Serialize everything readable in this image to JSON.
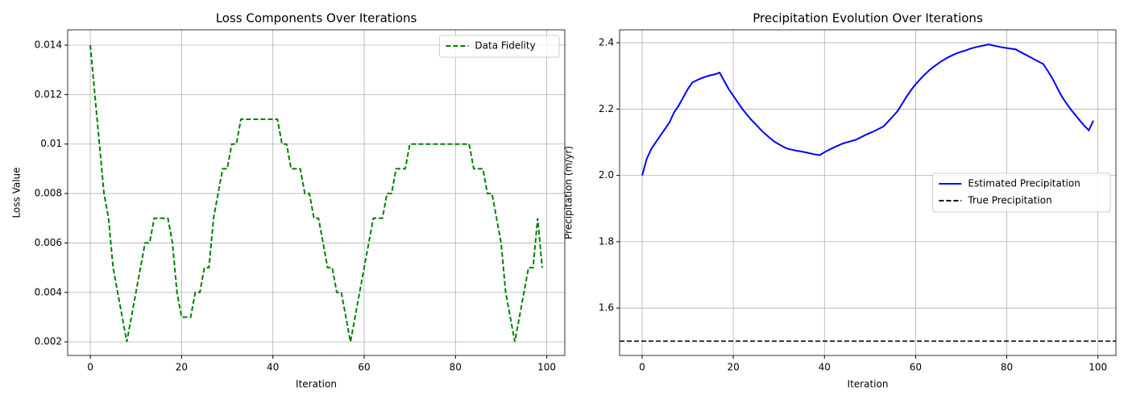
{
  "chart_data": [
    {
      "type": "line",
      "title": "Loss Components Over Iterations",
      "xlabel": "Iteration",
      "ylabel": "Loss Value",
      "x": [
        0,
        1,
        2,
        3,
        4,
        5,
        6,
        7,
        8,
        9,
        10,
        11,
        12,
        13,
        14,
        15,
        16,
        17,
        18,
        19,
        20,
        21,
        22,
        23,
        24,
        25,
        26,
        27,
        28,
        29,
        30,
        31,
        32,
        33,
        34,
        35,
        36,
        37,
        38,
        39,
        40,
        41,
        42,
        43,
        44,
        45,
        46,
        47,
        48,
        49,
        50,
        51,
        52,
        53,
        54,
        55,
        56,
        57,
        58,
        59,
        60,
        61,
        62,
        63,
        64,
        65,
        66,
        67,
        68,
        69,
        70,
        71,
        72,
        73,
        74,
        75,
        76,
        77,
        78,
        79,
        80,
        81,
        82,
        83,
        84,
        85,
        86,
        87,
        88,
        89,
        90,
        91,
        92,
        93,
        94,
        95,
        96,
        97,
        98,
        99
      ],
      "series": [
        {
          "name": "Data Fidelity",
          "color": "#008000",
          "style": "dashed",
          "values": [
            0.014,
            0.012,
            0.01,
            0.008,
            0.007,
            0.005,
            0.004,
            0.003,
            0.002,
            0.003,
            0.004,
            0.005,
            0.006,
            0.006,
            0.007,
            0.007,
            0.007,
            0.007,
            0.006,
            0.004,
            0.003,
            0.003,
            0.003,
            0.004,
            0.004,
            0.005,
            0.005,
            0.007,
            0.008,
            0.009,
            0.009,
            0.01,
            0.01,
            0.011,
            0.011,
            0.011,
            0.011,
            0.011,
            0.011,
            0.011,
            0.011,
            0.011,
            0.01,
            0.01,
            0.009,
            0.009,
            0.009,
            0.008,
            0.008,
            0.007,
            0.007,
            0.006,
            0.005,
            0.005,
            0.004,
            0.004,
            0.003,
            0.002,
            0.003,
            0.004,
            0.005,
            0.006,
            0.007,
            0.007,
            0.007,
            0.008,
            0.008,
            0.009,
            0.009,
            0.009,
            0.01,
            0.01,
            0.01,
            0.01,
            0.01,
            0.01,
            0.01,
            0.01,
            0.01,
            0.01,
            0.01,
            0.01,
            0.01,
            0.01,
            0.009,
            0.009,
            0.009,
            0.008,
            0.008,
            0.007,
            0.006,
            0.004,
            0.003,
            0.002,
            0.003,
            0.004,
            0.005,
            0.005,
            0.007,
            0.005
          ]
        }
      ],
      "xlim": [
        -4.95,
        103.95
      ],
      "xticks": [
        0,
        20,
        40,
        60,
        80,
        100
      ],
      "ylim": [
        0.00145,
        0.01462
      ],
      "yticks": [
        0.002,
        0.004,
        0.006,
        0.008,
        0.01,
        0.012,
        0.014
      ],
      "grid": true,
      "legend": "upper right"
    },
    {
      "type": "line",
      "title": "Precipitation Evolution Over Iterations",
      "xlabel": "Iteration",
      "ylabel": "Precipitation (m/yr)",
      "x": [
        0,
        1,
        2,
        3,
        4,
        5,
        6,
        7,
        8,
        9,
        10,
        11,
        12,
        13,
        14,
        15,
        16,
        17,
        18,
        19,
        20,
        21,
        22,
        23,
        24,
        25,
        26,
        27,
        28,
        29,
        30,
        31,
        32,
        33,
        34,
        35,
        36,
        37,
        38,
        39,
        40,
        41,
        42,
        43,
        44,
        45,
        46,
        47,
        48,
        49,
        50,
        51,
        52,
        53,
        54,
        55,
        56,
        57,
        58,
        59,
        60,
        61,
        62,
        63,
        64,
        65,
        66,
        67,
        68,
        69,
        70,
        71,
        72,
        73,
        74,
        75,
        76,
        77,
        78,
        79,
        80,
        81,
        82,
        83,
        84,
        85,
        86,
        87,
        88,
        89,
        90,
        91,
        92,
        93,
        94,
        95,
        96,
        97,
        98,
        99
      ],
      "series": [
        {
          "name": "Estimated Precipitation",
          "color": "#0000ff",
          "style": "solid",
          "values": [
            2.0,
            2.05,
            2.08,
            2.1,
            2.12,
            2.14,
            2.16,
            2.19,
            2.21,
            2.235,
            2.26,
            2.28,
            2.287,
            2.293,
            2.298,
            2.302,
            2.305,
            2.31,
            2.285,
            2.26,
            2.24,
            2.22,
            2.2,
            2.183,
            2.167,
            2.153,
            2.138,
            2.125,
            2.113,
            2.102,
            2.094,
            2.086,
            2.08,
            2.077,
            2.074,
            2.072,
            2.069,
            2.066,
            2.063,
            2.061,
            2.07,
            2.077,
            2.084,
            2.09,
            2.096,
            2.1,
            2.104,
            2.108,
            2.115,
            2.122,
            2.128,
            2.134,
            2.141,
            2.148,
            2.163,
            2.178,
            2.193,
            2.215,
            2.237,
            2.257,
            2.275,
            2.29,
            2.304,
            2.317,
            2.328,
            2.338,
            2.347,
            2.355,
            2.362,
            2.368,
            2.373,
            2.377,
            2.382,
            2.386,
            2.389,
            2.392,
            2.395,
            2.392,
            2.389,
            2.386,
            2.384,
            2.382,
            2.38,
            2.372,
            2.365,
            2.358,
            2.35,
            2.343,
            2.336,
            2.315,
            2.293,
            2.266,
            2.24,
            2.219,
            2.2,
            2.183,
            2.166,
            2.15,
            2.136,
            2.165
          ]
        },
        {
          "name": "True Precipitation",
          "color": "#000000",
          "style": "dashed",
          "hline": 1.5
        }
      ],
      "xlim": [
        -4.95,
        103.95
      ],
      "xticks": [
        0,
        20,
        40,
        60,
        80,
        100
      ],
      "ylim": [
        1.457,
        2.439
      ],
      "yticks": [
        1.6,
        1.8,
        {
          "value": 2,
          "label": "2.0"
        },
        2.2,
        2.4
      ],
      "grid": true,
      "legend": "center right"
    }
  ]
}
